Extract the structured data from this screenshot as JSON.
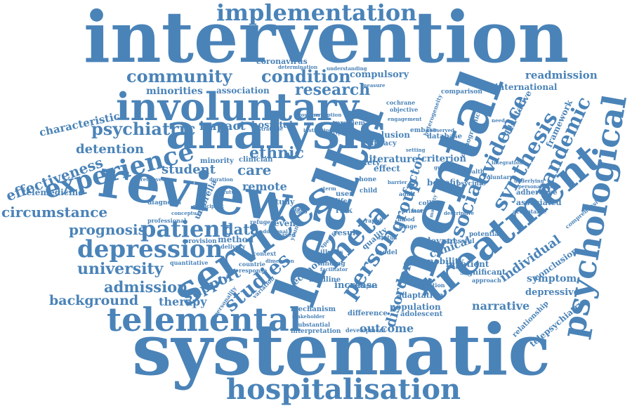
{
  "colors": {
    "text": "#4a83b8",
    "background": "#ffffff"
  },
  "words": [
    "intervention",
    "systematic",
    "mental",
    "health",
    "review",
    "analysis",
    "treatment",
    "services",
    "involuntary",
    "psychological",
    "telemental",
    "hospitalisation",
    "implementation",
    "experience",
    "depression",
    "patient",
    "studies",
    "meta",
    "person",
    "pandemic",
    "synthesis",
    "evidence",
    "social",
    "community",
    "condition",
    "research",
    "university",
    "admission",
    "background",
    "circumstance",
    "effectiveness",
    "psychiatric",
    "characteristic",
    "detention",
    "student",
    "prognosis",
    "data",
    "support",
    "therapy",
    "outcome",
    "disorder",
    "narrative",
    "individual",
    "symptom",
    "depressive",
    "conclusion",
    "clinical",
    "readmission",
    "international",
    "framework",
    "qualitative",
    "care",
    "ethnic",
    "remote",
    "impact",
    "hospital",
    "minorities",
    "association",
    "coronavirus",
    "compulsory",
    "telemedicine",
    "umbrella",
    "group",
    "factor",
    "relevant",
    "population",
    "increase",
    "mobility",
    "inpatient",
    "significant",
    "telepsychiatry",
    "relationship",
    "associated",
    "adherence",
    "criterion",
    "literature",
    "benefit",
    "database",
    "inclusion",
    "efficacy",
    "effect",
    "safety",
    "quality",
    "risk",
    "result",
    "event",
    "method",
    "study",
    "adaptation",
    "adolescent",
    "difference",
    "mechanism",
    "interpretation",
    "development",
    "medline",
    "economic",
    "college",
    "stressful",
    "potential",
    "approach",
    "adoption",
    "psycinfo",
    "comparison",
    "cochrane",
    "objective",
    "demographic",
    "heterogeneity",
    "personalisation",
    "comprehensive",
    "acceptable",
    "underlying",
    "voluntary",
    "ehealth",
    "user",
    "child",
    "adult",
    "illness",
    "finding",
    "model",
    "range",
    "mood",
    "status",
    "embase",
    "observed",
    "problem",
    "typology",
    "measure",
    "understanding",
    "determination",
    "clinician",
    "minority",
    "diagnosis",
    "professional",
    "provision",
    "quantitative",
    "personality",
    "conceptual",
    "young",
    "specific",
    "phone",
    "primary",
    "refugee",
    "video",
    "life",
    "rapid",
    "based",
    "context",
    "countrie",
    "response",
    "delivery",
    "variation",
    "dimension",
    "substantial",
    "stakeholder",
    "complex",
    "facilitator",
    "prospero",
    "guidance",
    "strategie",
    "perception",
    "participant",
    "engagement",
    "integration",
    "setting",
    "majority",
    "barrier",
    "descriptive",
    "institutional",
    "additional",
    "focus",
    "term",
    "future",
    "face",
    "duration",
    "need",
    "retrieved",
    "search",
    "framework",
    "attitude"
  ]
}
